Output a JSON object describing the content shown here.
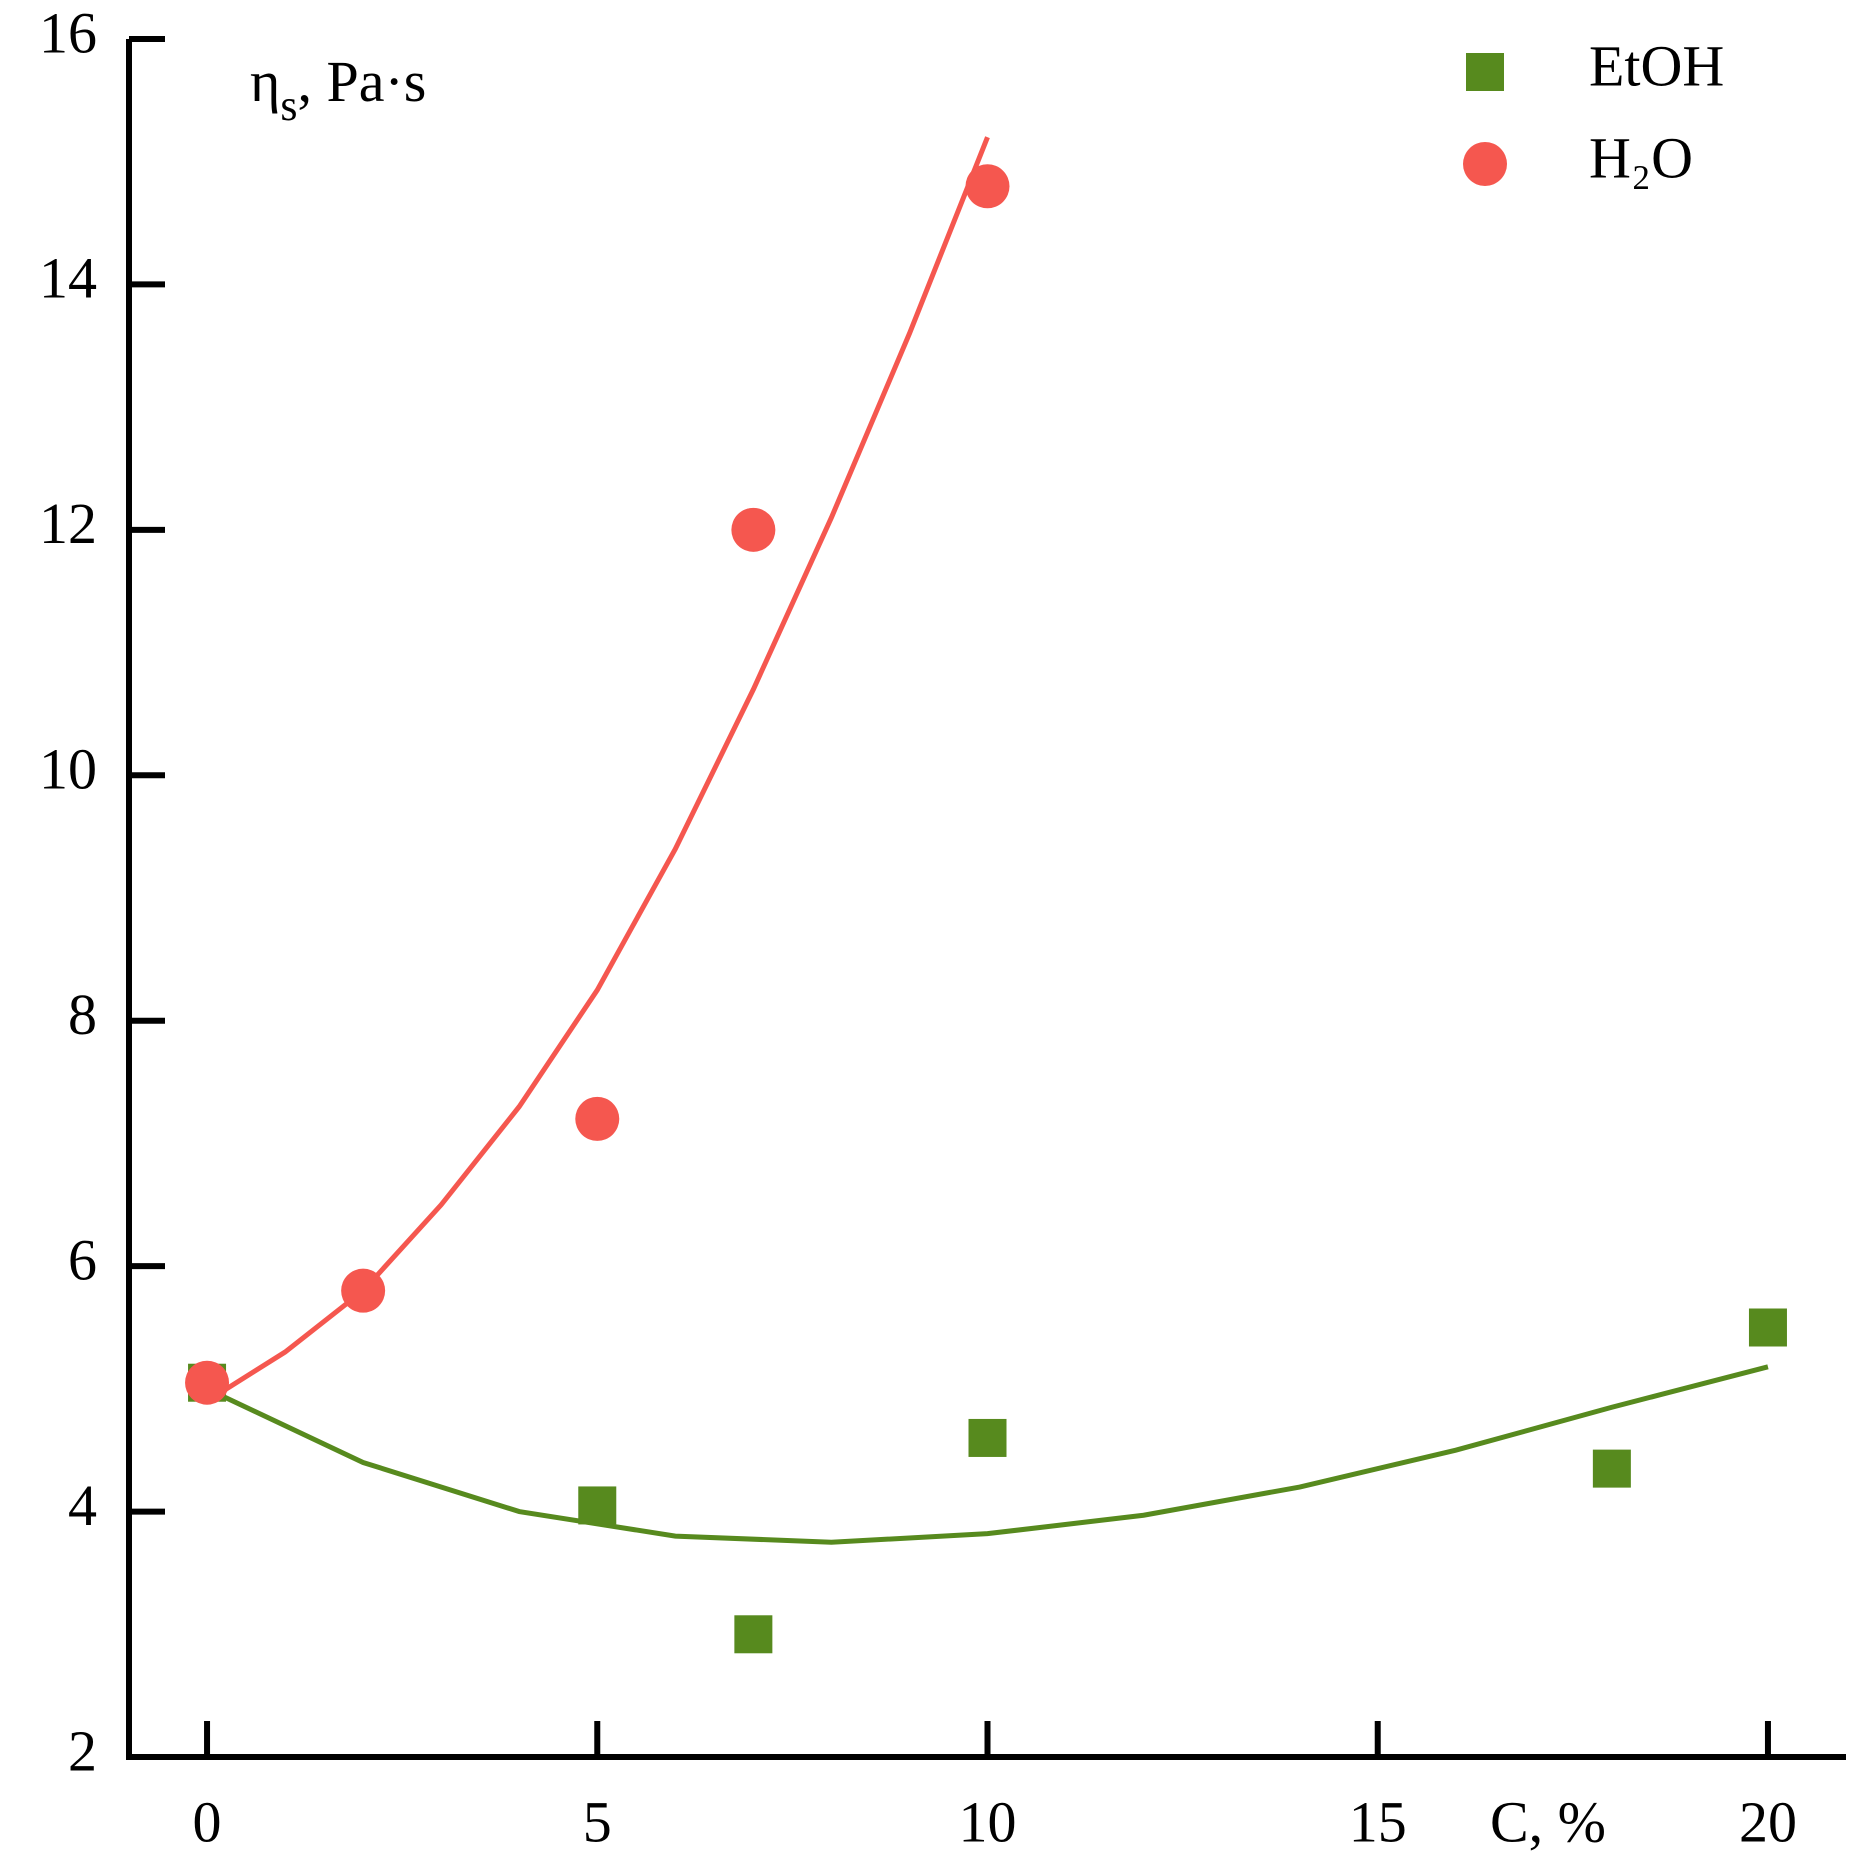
{
  "chart_data": {
    "type": "scatter",
    "ylabel": [
      "η",
      "s",
      ", Pa·s"
    ],
    "xlabel": "C, %",
    "xlim": [
      -1,
      21
    ],
    "xticks": [
      0,
      5,
      10,
      15,
      20
    ],
    "ylim": [
      2,
      16
    ],
    "yticks": [
      2,
      4,
      6,
      8,
      10,
      12,
      14,
      16
    ],
    "legend": "upper right",
    "series": [
      {
        "name": "EtOH",
        "color": "#578a1e",
        "marker": "square",
        "x": [
          0,
          5,
          7,
          10,
          18,
          20
        ],
        "values": [
          5.05,
          4.05,
          3.0,
          4.6,
          4.35,
          5.5
        ],
        "fit": {
          "x": [
            0,
            2,
            4,
            6,
            8,
            10,
            12,
            14,
            16,
            18,
            20
          ],
          "values": [
            5.0,
            4.4,
            4.0,
            3.8,
            3.75,
            3.82,
            3.97,
            4.2,
            4.5,
            4.85,
            5.18
          ]
        }
      },
      {
        "name": "H₂O",
        "color": "#f5574f",
        "marker": "circle",
        "x": [
          0,
          2,
          5,
          7,
          10
        ],
        "values": [
          5.05,
          5.8,
          7.2,
          12.0,
          14.8
        ],
        "fit": {
          "x": [
            0,
            1,
            2,
            3,
            4,
            5,
            6,
            7,
            8,
            9,
            10
          ],
          "values": [
            4.9,
            5.3,
            5.8,
            6.5,
            7.3,
            8.25,
            9.4,
            10.7,
            12.1,
            13.6,
            15.2
          ]
        }
      }
    ]
  }
}
